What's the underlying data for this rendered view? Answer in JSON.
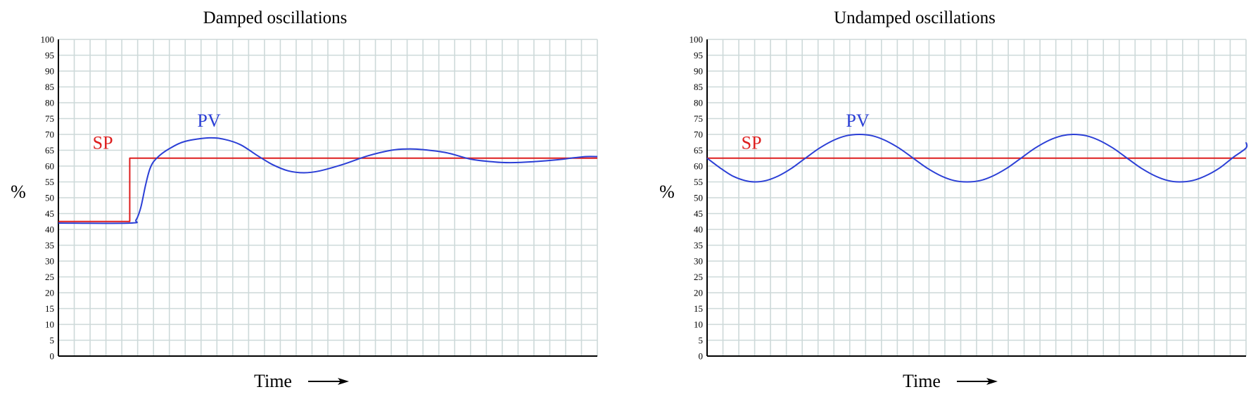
{
  "chart_data": [
    {
      "type": "line",
      "title": "Damped oscillations",
      "xlabel": "Time",
      "ylabel": "%",
      "ylim": [
        0,
        100
      ],
      "yticks": [
        0,
        5,
        10,
        15,
        20,
        25,
        30,
        35,
        40,
        45,
        50,
        55,
        60,
        65,
        70,
        75,
        80,
        85,
        90,
        95,
        100
      ],
      "xlim": [
        0,
        34
      ],
      "grid": true,
      "x_arrow": true,
      "series": [
        {
          "name": "SP",
          "color": "#dd1f1f",
          "points": [
            [
              0,
              42.5
            ],
            [
              4.5,
              42.5
            ],
            [
              4.5,
              62.5
            ],
            [
              34,
              62.5
            ]
          ]
        },
        {
          "name": "PV",
          "color": "#2b3fd6",
          "points": [
            [
              0,
              42
            ],
            [
              4.5,
              42
            ],
            [
              4.9,
              43
            ],
            [
              5.2,
              47
            ],
            [
              5.5,
              54
            ],
            [
              5.8,
              59.5
            ],
            [
              6.2,
              62.5
            ],
            [
              7,
              65.5
            ],
            [
              8,
              67.8
            ],
            [
              9.5,
              68.9
            ],
            [
              10.5,
              68.4
            ],
            [
              11.5,
              66.7
            ],
            [
              12.5,
              63.5
            ],
            [
              13.5,
              60.5
            ],
            [
              14.5,
              58.5
            ],
            [
              15.5,
              57.9
            ],
            [
              16.5,
              58.5
            ],
            [
              18,
              60.6
            ],
            [
              19.5,
              63.2
            ],
            [
              21,
              65
            ],
            [
              22,
              65.4
            ],
            [
              23,
              65.2
            ],
            [
              24.5,
              64.2
            ],
            [
              26,
              62.2
            ],
            [
              27.5,
              61.3
            ],
            [
              28.5,
              61.1
            ],
            [
              30,
              61.4
            ],
            [
              31.5,
              62
            ],
            [
              32.5,
              62.6
            ],
            [
              33.3,
              63
            ],
            [
              34,
              63
            ]
          ]
        }
      ],
      "annotations": [
        {
          "text": "SP",
          "x": 2.8,
          "y": 65.5,
          "color": "#dd1f1f"
        },
        {
          "text": "PV",
          "x": 9.5,
          "y": 72.5,
          "color": "#2b3fd6"
        }
      ]
    },
    {
      "type": "line",
      "title": "Undamped oscillations",
      "xlabel": "Time",
      "ylabel": "%",
      "ylim": [
        0,
        100
      ],
      "yticks": [
        0,
        5,
        10,
        15,
        20,
        25,
        30,
        35,
        40,
        45,
        50,
        55,
        60,
        65,
        70,
        75,
        80,
        85,
        90,
        95,
        100
      ],
      "xlim": [
        0,
        34
      ],
      "grid": true,
      "x_arrow": true,
      "series": [
        {
          "name": "SP",
          "color": "#dd1f1f",
          "points": [
            [
              0,
              62.5
            ],
            [
              34,
              62.5
            ]
          ]
        },
        {
          "name": "PV",
          "color": "#2b3fd6",
          "points": [
            [
              0,
              62.5
            ],
            [
              0.8,
              59.5
            ],
            [
              1.6,
              56.9
            ],
            [
              2.4,
              55.4
            ],
            [
              3,
              55
            ],
            [
              3.7,
              55.4
            ],
            [
              4.5,
              56.9
            ],
            [
              5.3,
              59.2
            ],
            [
              6.2,
              62.5
            ],
            [
              7.1,
              65.7
            ],
            [
              8,
              68.2
            ],
            [
              8.8,
              69.6
            ],
            [
              9.6,
              70
            ],
            [
              10.4,
              69.6
            ],
            [
              11.2,
              68.2
            ],
            [
              12.1,
              65.7
            ],
            [
              13,
              62.5
            ],
            [
              13.9,
              59.3
            ],
            [
              14.8,
              56.8
            ],
            [
              15.6,
              55.4
            ],
            [
              16.4,
              55
            ],
            [
              17.2,
              55.4
            ],
            [
              18,
              56.8
            ],
            [
              18.9,
              59.3
            ],
            [
              19.8,
              62.5
            ],
            [
              20.7,
              65.7
            ],
            [
              21.6,
              68.2
            ],
            [
              22.4,
              69.6
            ],
            [
              23.1,
              70
            ],
            [
              23.9,
              69.6
            ],
            [
              24.7,
              68.2
            ],
            [
              25.6,
              65.7
            ],
            [
              26.5,
              62.5
            ],
            [
              27.4,
              59.3
            ],
            [
              28.3,
              56.8
            ],
            [
              29.1,
              55.4
            ],
            [
              29.8,
              55
            ],
            [
              30.6,
              55.4
            ],
            [
              31.4,
              56.8
            ],
            [
              32.3,
              59.3
            ],
            [
              33.2,
              62.8
            ],
            [
              34,
              65.7
            ],
            [
              34,
              67.5
            ]
          ]
        }
      ],
      "annotations": [
        {
          "text": "SP",
          "x": 2.8,
          "y": 65.5,
          "color": "#dd1f1f"
        },
        {
          "text": "PV",
          "x": 9.5,
          "y": 72.5,
          "color": "#2b3fd6"
        }
      ]
    }
  ]
}
